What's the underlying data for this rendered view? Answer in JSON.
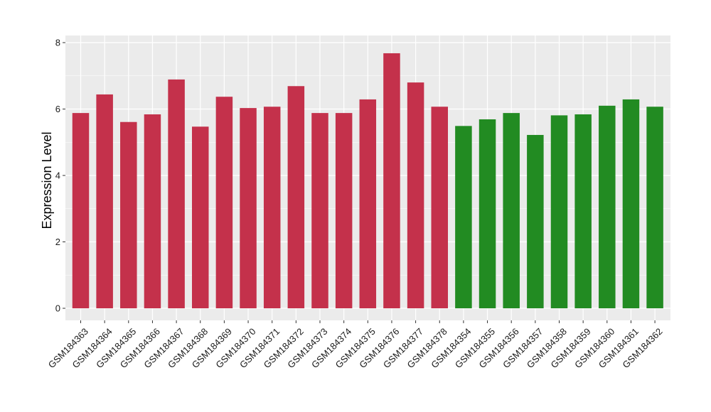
{
  "chart_data": {
    "type": "bar",
    "title": "",
    "xlabel": "",
    "ylabel": "Expression Level",
    "ylim": [
      0,
      8
    ],
    "yticks": [
      0,
      2,
      4,
      6,
      8
    ],
    "grid": true,
    "legend": "none",
    "categories": [
      "GSM184363",
      "GSM184364",
      "GSM184365",
      "GSM184366",
      "GSM184367",
      "GSM184368",
      "GSM184369",
      "GSM184370",
      "GSM184371",
      "GSM184372",
      "GSM184373",
      "GSM184374",
      "GSM184375",
      "GSM184376",
      "GSM184377",
      "GSM184378",
      "GSM184354",
      "GSM184355",
      "GSM184356",
      "GSM184357",
      "GSM184358",
      "GSM184359",
      "GSM184360",
      "GSM184361",
      "GSM184362"
    ],
    "values": [
      5.88,
      6.44,
      5.61,
      5.84,
      6.89,
      5.47,
      6.37,
      6.03,
      6.07,
      6.69,
      5.88,
      5.88,
      6.29,
      7.68,
      6.8,
      6.07,
      5.49,
      5.69,
      5.88,
      5.22,
      5.81,
      5.84,
      6.1,
      6.29,
      6.07
    ],
    "bar_colors": [
      "#c4314b",
      "#c4314b",
      "#c4314b",
      "#c4314b",
      "#c4314b",
      "#c4314b",
      "#c4314b",
      "#c4314b",
      "#c4314b",
      "#c4314b",
      "#c4314b",
      "#c4314b",
      "#c4314b",
      "#c4314b",
      "#c4314b",
      "#c4314b",
      "#228b22",
      "#228b22",
      "#228b22",
      "#228b22",
      "#228b22",
      "#228b22",
      "#228b22",
      "#228b22",
      "#228b22"
    ],
    "panel_background": "#ebebeb",
    "gridline_color": "#ffffff"
  }
}
